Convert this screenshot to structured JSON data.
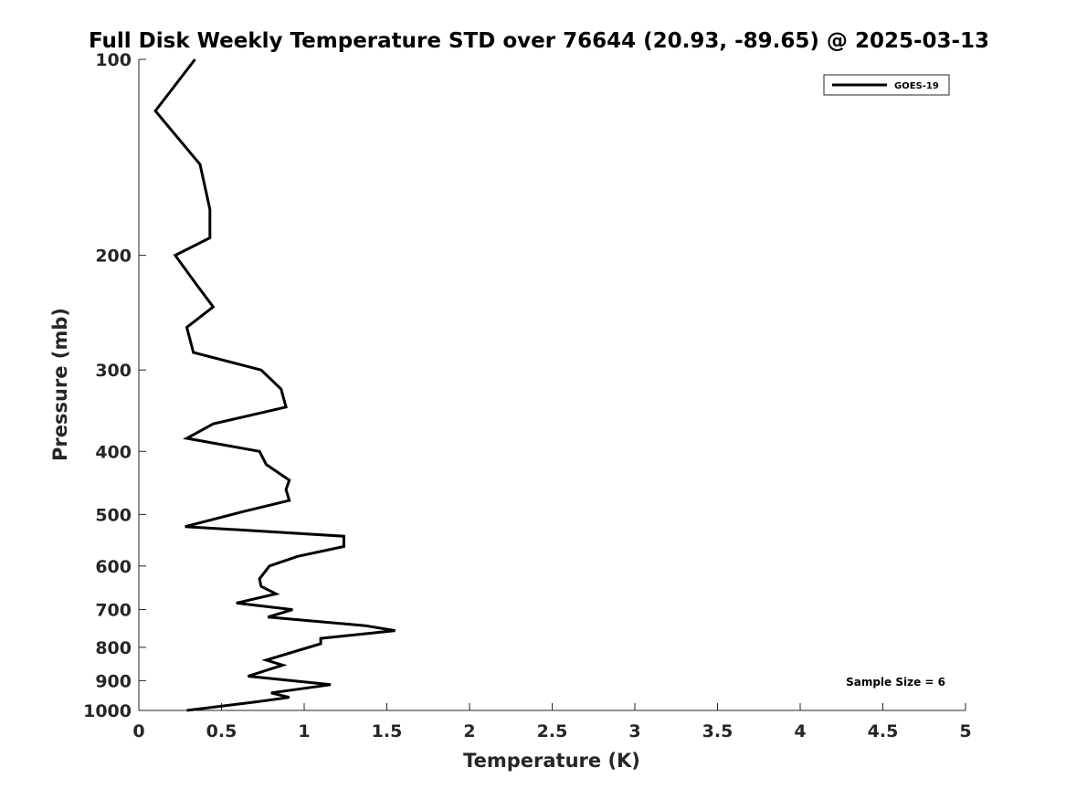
{
  "chart_data": {
    "type": "line",
    "title": "Full Disk Weekly Temperature STD over 76644 (20.93, -89.65) @ 2025-03-13",
    "xlabel": "Temperature (K)",
    "ylabel": "Pressure (mb)",
    "xlim": [
      0,
      5
    ],
    "ylim": [
      1000,
      100
    ],
    "y_scale": "log",
    "x_ticks": [
      0,
      0.5,
      1,
      1.5,
      2,
      2.5,
      3,
      3.5,
      4,
      4.5,
      5
    ],
    "x_tick_labels": [
      "0",
      "0.5",
      "1",
      "1.5",
      "2",
      "2.5",
      "3",
      "3.5",
      "4",
      "4.5",
      "5"
    ],
    "y_ticks": [
      100,
      200,
      300,
      400,
      500,
      600,
      700,
      800,
      900,
      1000
    ],
    "y_tick_labels": [
      "100",
      "200",
      "300",
      "400",
      "500",
      "600",
      "700",
      "800",
      "900",
      "1000"
    ],
    "grid": false,
    "legend_position": "top-right",
    "series": [
      {
        "name": "GOES-19",
        "color": "#000000",
        "points": [
          [
            0.34,
            100
          ],
          [
            0.1,
            120
          ],
          [
            0.37,
            145
          ],
          [
            0.43,
            170
          ],
          [
            0.43,
            188
          ],
          [
            0.22,
            200
          ],
          [
            0.35,
            222
          ],
          [
            0.45,
            240
          ],
          [
            0.29,
            258
          ],
          [
            0.33,
            282
          ],
          [
            0.74,
            300
          ],
          [
            0.86,
            321
          ],
          [
            0.89,
            342
          ],
          [
            0.45,
            363
          ],
          [
            0.29,
            382
          ],
          [
            0.73,
            400
          ],
          [
            0.77,
            419
          ],
          [
            0.91,
            443
          ],
          [
            0.89,
            458
          ],
          [
            0.91,
            476
          ],
          [
            0.63,
            495
          ],
          [
            0.28,
            522
          ],
          [
            1.24,
            540
          ],
          [
            1.24,
            560
          ],
          [
            0.96,
            580
          ],
          [
            0.79,
            600
          ],
          [
            0.73,
            628
          ],
          [
            0.74,
            645
          ],
          [
            0.83,
            662
          ],
          [
            0.59,
            684
          ],
          [
            0.93,
            700
          ],
          [
            0.78,
            719
          ],
          [
            1.37,
            741
          ],
          [
            1.55,
            754
          ],
          [
            1.1,
            775
          ],
          [
            1.1,
            790
          ],
          [
            0.97,
            808
          ],
          [
            0.77,
            837
          ],
          [
            0.87,
            852
          ],
          [
            0.66,
            886
          ],
          [
            1.16,
            913
          ],
          [
            0.8,
            940
          ],
          [
            0.91,
            955
          ],
          [
            0.71,
            970
          ],
          [
            0.29,
            1000
          ]
        ]
      }
    ],
    "annotation": "Sample Size = 6"
  }
}
